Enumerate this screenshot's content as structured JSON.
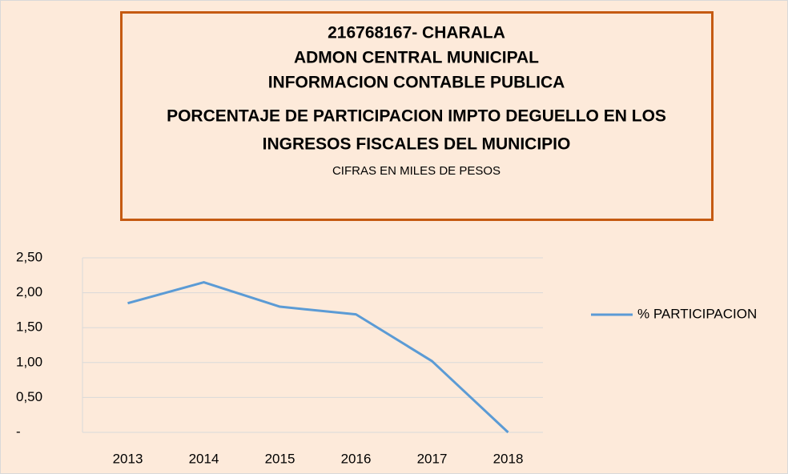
{
  "chart_data": {
    "type": "line",
    "title_lines": [
      "216768167- CHARALA",
      "ADMON CENTRAL MUNICIPAL",
      "INFORMACION CONTABLE PUBLICA",
      "PORCENTAJE DE  PARTICIPACION IMPTO DEGUELLO EN LOS",
      "INGRESOS FISCALES DEL MUNICIPIO"
    ],
    "subtitle": "CIFRAS EN MILES DE PESOS",
    "categories": [
      "2013",
      "2014",
      "2015",
      "2016",
      "2017",
      "2018"
    ],
    "series": [
      {
        "name": "% PARTICIPACION",
        "color": "#5b9bd5",
        "values": [
          1.85,
          2.15,
          1.8,
          1.69,
          1.02,
          0
        ]
      }
    ],
    "ylim": [
      0,
      2.5
    ],
    "yticks": [
      {
        "value": 0,
        "label": "-"
      },
      {
        "value": 0.5,
        "label": "0,50"
      },
      {
        "value": 1,
        "label": "1,00"
      },
      {
        "value": 1.5,
        "label": "1,50"
      },
      {
        "value": 2,
        "label": "2,00"
      },
      {
        "value": 2.5,
        "label": "2,50"
      }
    ],
    "grid": true,
    "legend": "right"
  }
}
